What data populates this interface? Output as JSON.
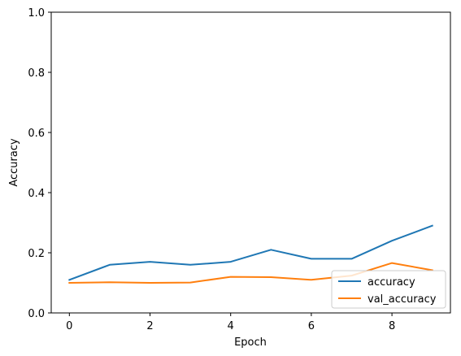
{
  "chart_data": {
    "type": "line",
    "title": "",
    "xlabel": "Epoch",
    "ylabel": "Accuracy",
    "xlim": [
      -0.45,
      9.45
    ],
    "ylim": [
      0,
      1.0
    ],
    "x": [
      0,
      1,
      2,
      3,
      4,
      5,
      6,
      7,
      8,
      9
    ],
    "xticks": [
      0,
      2,
      4,
      6,
      8
    ],
    "yticks": [
      0.0,
      0.2,
      0.4,
      0.6,
      0.8,
      1.0
    ],
    "xtick_labels": [
      "0",
      "2",
      "4",
      "6",
      "8"
    ],
    "ytick_labels": [
      "0.0",
      "0.2",
      "0.4",
      "0.6",
      "0.8",
      "1.0"
    ],
    "grid": false,
    "legend_position": "bottom-right",
    "series": [
      {
        "name": "accuracy",
        "color": "#1f77b4",
        "values": [
          0.11,
          0.16,
          0.17,
          0.16,
          0.17,
          0.21,
          0.18,
          0.18,
          0.24,
          0.29
        ]
      },
      {
        "name": "val_accuracy",
        "color": "#ff7f0e",
        "values": [
          0.1,
          0.102,
          0.1,
          0.101,
          0.12,
          0.119,
          0.11,
          0.124,
          0.166,
          0.142
        ]
      }
    ]
  }
}
